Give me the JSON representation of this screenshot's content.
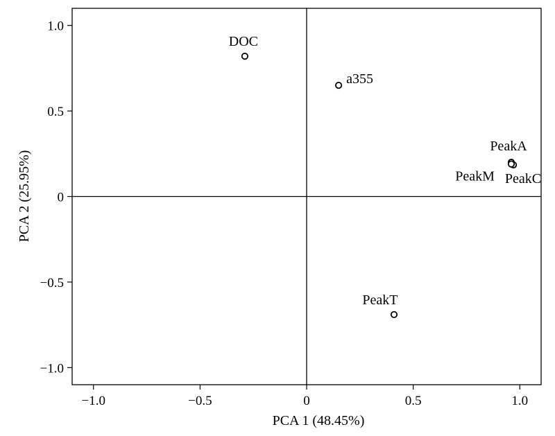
{
  "chart_data": {
    "type": "scatter",
    "xlabel": "PCA 1 (48.45%)",
    "ylabel": "PCA 2 (25.95%)",
    "xlim": [
      -1.1,
      1.1
    ],
    "ylim": [
      -1.1,
      1.1
    ],
    "xticks": [
      -1.0,
      -0.5,
      0,
      0.5,
      1.0
    ],
    "yticks": [
      -1.0,
      -0.5,
      0,
      0.5,
      1.0
    ],
    "xtick_labels": [
      "−1.0",
      "−0.5",
      "0",
      "0.5",
      "1.0"
    ],
    "ytick_labels": [
      "−1.0",
      "−0.5",
      "0",
      "0.5",
      "1.0"
    ],
    "grid": false,
    "reference_lines": {
      "x": 0,
      "y": 0
    },
    "points": [
      {
        "label": "DOC",
        "x": -0.29,
        "y": 0.82
      },
      {
        "label": "a355",
        "x": 0.15,
        "y": 0.65
      },
      {
        "label": "PeakA",
        "x": 0.96,
        "y": 0.2
      },
      {
        "label": "PeakC",
        "x": 0.97,
        "y": 0.185
      },
      {
        "label": "PeakM",
        "x": 0.96,
        "y": 0.19
      },
      {
        "label": "PeakT",
        "x": 0.41,
        "y": -0.69
      }
    ],
    "marker": {
      "shape": "open-circle",
      "color": "#000000"
    }
  }
}
